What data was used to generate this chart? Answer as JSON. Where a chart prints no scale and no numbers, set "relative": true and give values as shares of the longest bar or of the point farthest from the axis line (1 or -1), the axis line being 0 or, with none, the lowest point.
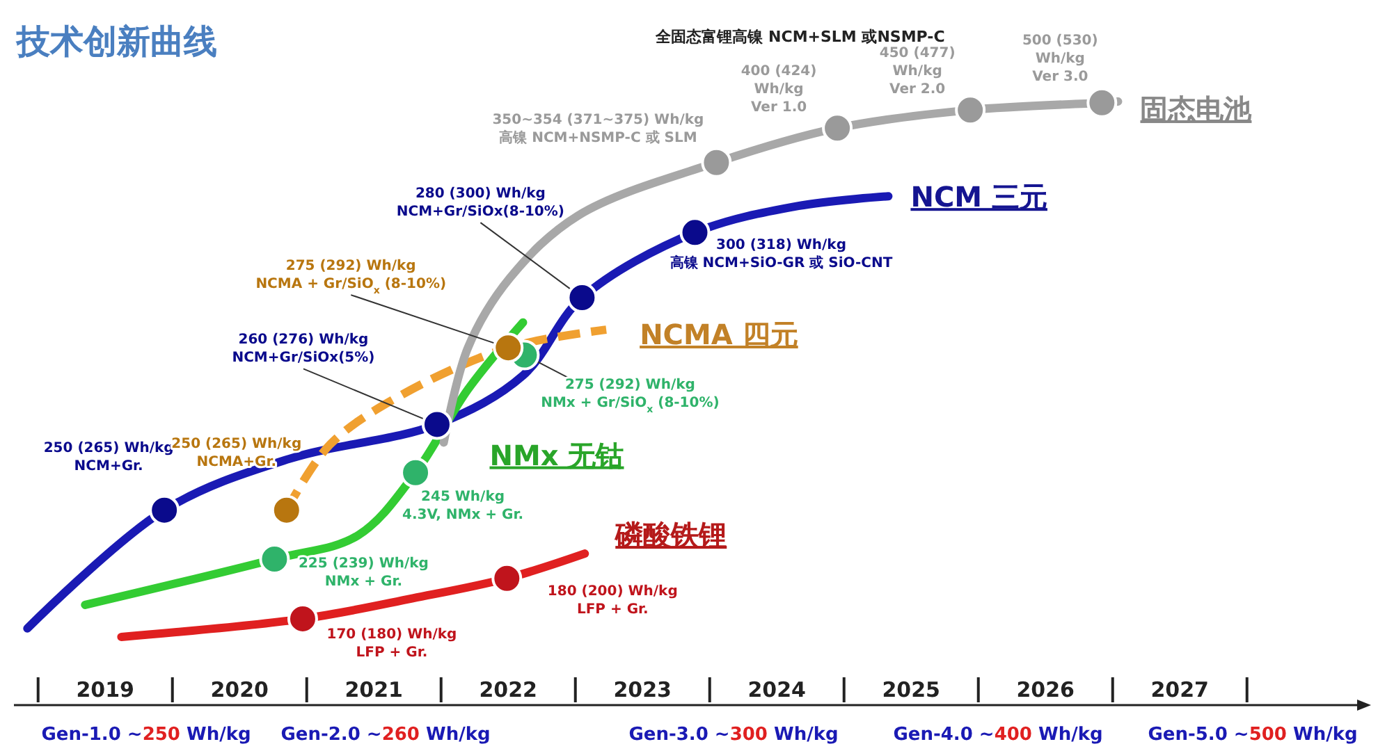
{
  "chart_data": {
    "type": "line",
    "title": "技术创新曲线",
    "relative": true,
    "legend": false,
    "grid": false,
    "xlim": [
      2018.82,
      2028.82
    ],
    "xticks": [
      {
        "value": 2019.5,
        "label": "2019"
      },
      {
        "value": 2020.5,
        "label": "2020"
      },
      {
        "value": 2021.5,
        "label": "2021"
      },
      {
        "value": 2022.5,
        "label": "2022"
      },
      {
        "value": 2023.5,
        "label": "2023"
      },
      {
        "value": 2024.5,
        "label": "2024"
      },
      {
        "value": 2025.5,
        "label": "2025"
      },
      {
        "value": 2026.5,
        "label": "2026"
      },
      {
        "value": 2027.5,
        "label": "2027"
      }
    ],
    "series": [
      {
        "name": "NCM 三元",
        "color": "#1a1ab4",
        "marker": "none",
        "line_style": "solid",
        "x": [
          2018.92,
          2019.94,
          2020.87,
          2021.97,
          2022.61,
          2023.05,
          2023.89,
          2024.66,
          2025.33
        ],
        "values": [
          0.127,
          0.323,
          0.408,
          0.465,
          0.546,
          0.675,
          0.783,
          0.827,
          0.843
        ]
      },
      {
        "name": "NCMA 四元",
        "color": "#f0a030",
        "marker": "none",
        "line_style": "dashed",
        "x": [
          2020.85,
          2021.17,
          2021.69,
          2022.5,
          2023.23
        ],
        "values": [
          0.323,
          0.431,
          0.512,
          0.592,
          0.622
        ]
      },
      {
        "name": "NMx 无钴",
        "color": "#33cc33",
        "marker": "none",
        "line_style": "solid",
        "x": [
          2019.35,
          2020.76,
          2021.38,
          2021.81,
          2022.2,
          2022.61
        ],
        "values": [
          0.166,
          0.242,
          0.281,
          0.385,
          0.523,
          0.634
        ]
      },
      {
        "name": "磷酸铁锂",
        "color": "#e02020",
        "marker": "none",
        "line_style": "solid",
        "x": [
          2019.62,
          2020.97,
          2021.79,
          2022.49,
          2023.07
        ],
        "values": [
          0.113,
          0.143,
          0.177,
          0.21,
          0.251
        ]
      },
      {
        "name": "固态电池",
        "color": "#a8a8a8",
        "marker": "none",
        "line_style": "solid",
        "x": [
          2022.02,
          2022.2,
          2022.51,
          2023.02,
          2024.05,
          2024.95,
          2025.94,
          2026.92,
          2027.04
        ],
        "values": [
          0.435,
          0.592,
          0.707,
          0.811,
          0.899,
          0.956,
          0.986,
          0.998,
          1.0
        ]
      },
      {
        "type": "scatter",
        "color": "#0a0a8c",
        "marker": "circle",
        "x": [
          2019.94,
          2021.97,
          2023.05,
          2023.89
        ],
        "values": [
          0.323,
          0.465,
          0.675,
          0.783
        ]
      },
      {
        "type": "scatter",
        "color": "#2fb36a",
        "marker": "circle",
        "x": [
          2020.76,
          2021.81,
          2022.62
        ],
        "values": [
          0.242,
          0.385,
          0.58
        ]
      },
      {
        "type": "scatter",
        "color": "#b8760f",
        "marker": "circle",
        "x": [
          2020.85,
          2022.5
        ],
        "values": [
          0.323,
          0.592
        ]
      },
      {
        "type": "scatter",
        "color": "#c0141c",
        "marker": "circle",
        "x": [
          2020.97,
          2022.49
        ],
        "values": [
          0.143,
          0.21
        ]
      },
      {
        "type": "scatter",
        "color": "#9a9a9a",
        "marker": "circle",
        "x": [
          2024.05,
          2024.95,
          2025.94,
          2026.92
        ],
        "values": [
          0.899,
          0.956,
          0.986,
          0.998
        ]
      }
    ],
    "annotations": [
      {
        "text": "250 (265) Wh/kg\nNCM+Gr.",
        "x": 2019.94,
        "y": 0.323
      },
      {
        "text": "250 (265) Wh/kg\nNCMA+Gr.",
        "x": 2020.85,
        "y": 0.323
      },
      {
        "text": "260 (276) Wh/kg\nNCM+Gr/SiOx(5%)",
        "x": 2021.97,
        "y": 0.465
      },
      {
        "text": "275 (292)  Wh/kg\nNCMA + Gr/SiO$_{x}$ (8-10%)",
        "x": 2022.5,
        "y": 0.592
      },
      {
        "text": "280 (300) Wh/kg\nNCM+Gr/SiOx(8-10%)",
        "x": 2023.05,
        "y": 0.675
      },
      {
        "text": "300 (318) Wh/kg\n高镍 NCM+SiO-GR 或 SiO-CNT",
        "x": 2023.89,
        "y": 0.783
      },
      {
        "text": "275 (292)  Wh/kg\nNMx + Gr/SiO$_{x}$ (8-10%)",
        "x": 2022.62,
        "y": 0.58
      },
      {
        "text": "245  Wh/kg\n4.3V, NMx + Gr.",
        "x": 2021.81,
        "y": 0.385
      },
      {
        "text": "225 (239) Wh/kg\nNMx + Gr.",
        "x": 2020.76,
        "y": 0.242
      },
      {
        "text": "170 (180) Wh/kg\nLFP + Gr.",
        "x": 2020.97,
        "y": 0.143
      },
      {
        "text": "180 (200) Wh/kg\nLFP + Gr.",
        "x": 2022.49,
        "y": 0.21
      },
      {
        "text": "350~354 (371~375) Wh/kg\n高镍 NCM+NSMP-C 或 SLM",
        "x": 2024.05,
        "y": 0.899
      },
      {
        "text": "400 (424)\nWh/kg\nVer 1.0",
        "x": 2024.95,
        "y": 0.956
      },
      {
        "text": "450 (477)\nWh/kg\nVer 2.0",
        "x": 2025.94,
        "y": 0.986
      },
      {
        "text": "500 (530)\nWh/kg\nVer 3.0",
        "x": 2026.92,
        "y": 0.998
      },
      "全固态富锂高镍 NCM+SLM 或NSMP-C",
      "Gen-1.0 ~250 Wh/kg",
      "Gen-2.0 ~260 Wh/kg",
      "Gen-3.0 ~300 Wh/kg",
      "Gen-4.0 ~400 Wh/kg",
      "Gen-5.0 ~500 Wh/kg"
    ]
  }
}
